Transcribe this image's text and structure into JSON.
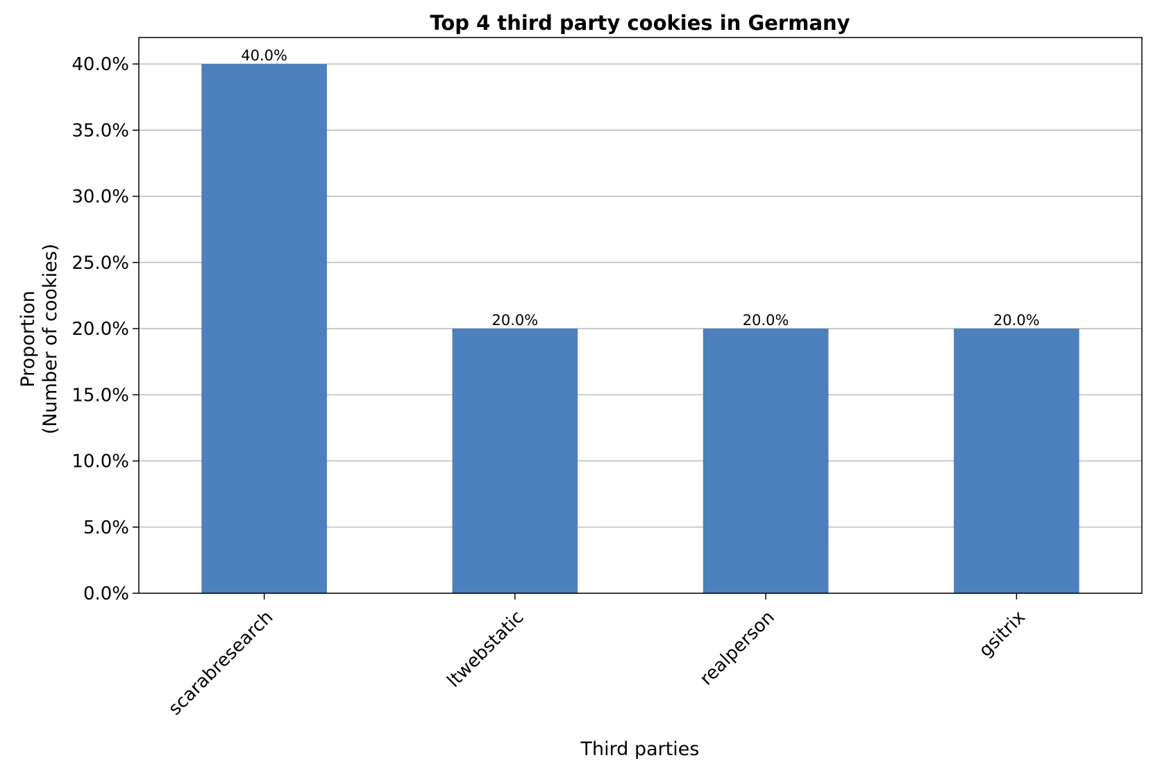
{
  "chart_data": {
    "type": "bar",
    "title": "Top 4 third party cookies in Germany",
    "xlabel": "Third parties",
    "ylabel_lines": [
      "Proportion",
      "(Number of cookies)"
    ],
    "categories": [
      "scarabresearch",
      "ltwebstatic",
      "realperson",
      "gsitrix"
    ],
    "values": [
      40.0,
      20.0,
      20.0,
      20.0
    ],
    "data_labels": [
      "40.0%",
      "20.0%",
      "20.0%",
      "20.0%"
    ],
    "ylim": [
      0,
      42
    ],
    "yticks": [
      0,
      5,
      10,
      15,
      20,
      25,
      30,
      35,
      40
    ],
    "ytick_labels": [
      "0.0%",
      "5.0%",
      "10.0%",
      "15.0%",
      "20.0%",
      "25.0%",
      "30.0%",
      "35.0%",
      "40.0%"
    ],
    "grid": "horizontal",
    "bar_color": "#4c80be",
    "grid_color": "#b0b0b0"
  }
}
